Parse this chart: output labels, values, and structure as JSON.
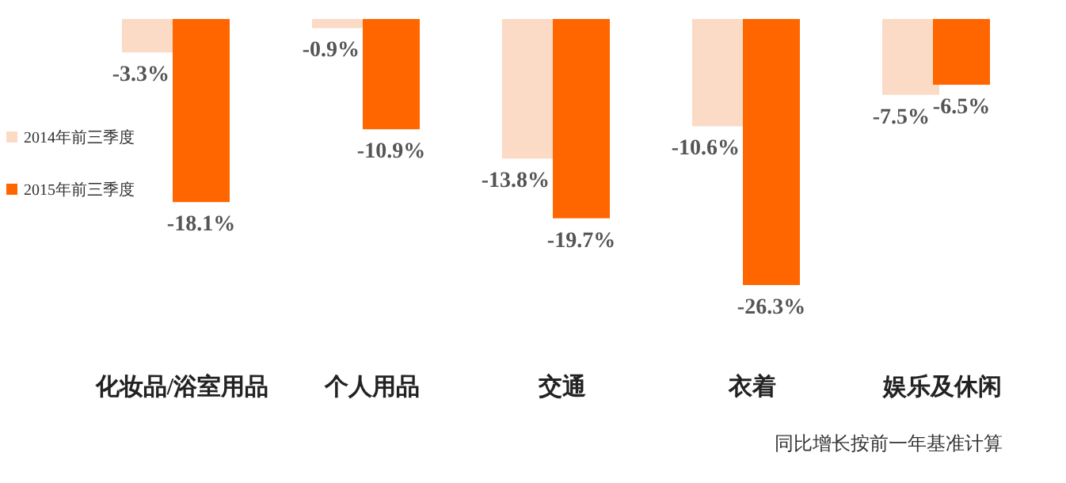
{
  "chart_data": {
    "type": "bar",
    "categories": [
      "化妆品/浴室用品",
      "个人用品",
      "交通",
      "衣着",
      "娱乐及休闲"
    ],
    "series": [
      {
        "name": "2014年前三季度",
        "color": "#fbdac6",
        "values": [
          -3.3,
          -0.9,
          -13.8,
          -10.6,
          -7.5
        ],
        "value_labels": [
          "-3.3%",
          "-0.9%",
          "-13.8%",
          "-10.6%",
          "-7.5%"
        ]
      },
      {
        "name": "2015年前三季度",
        "color": "#ff6600",
        "values": [
          -18.1,
          -10.9,
          -19.7,
          -26.3,
          -6.5
        ],
        "value_labels": [
          "-18.1%",
          "-10.9%",
          "-19.7%",
          "-26.3%",
          "-6.5%"
        ]
      }
    ],
    "legend": "left",
    "annotations": [
      "同比增长按前一年基准计算"
    ]
  }
}
